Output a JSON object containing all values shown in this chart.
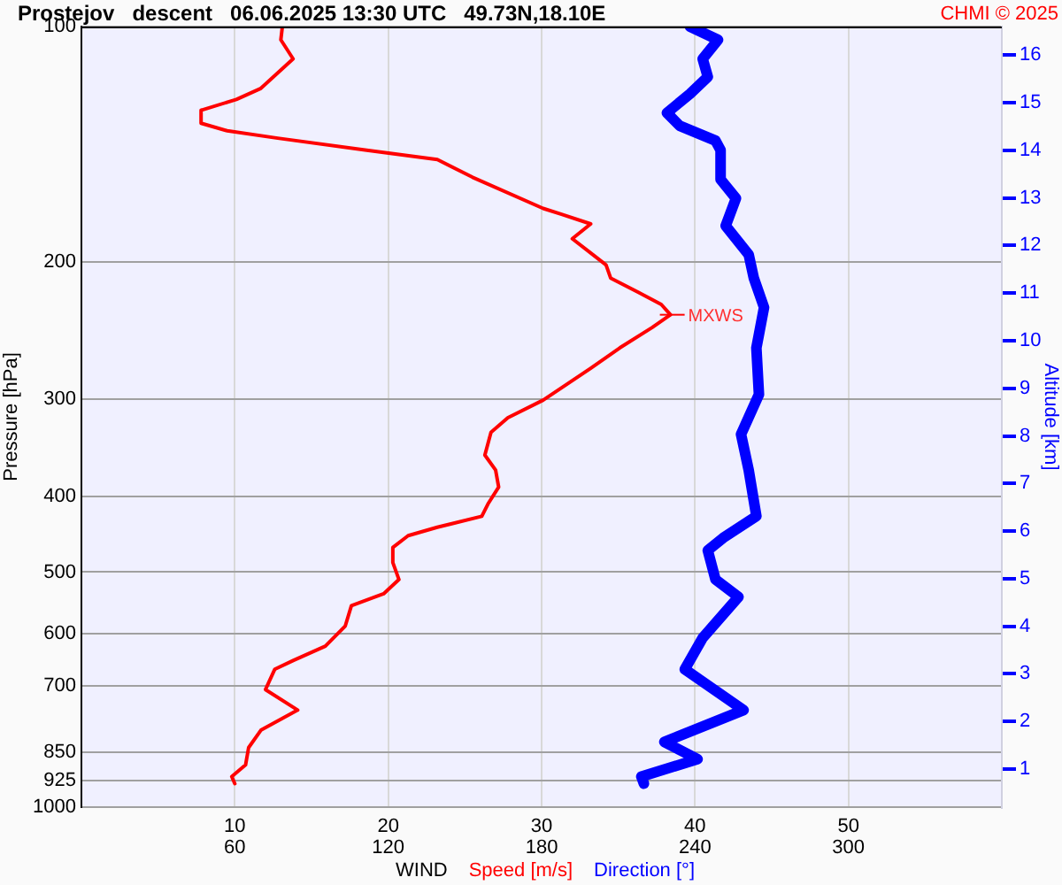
{
  "chart_data": {
    "type": "line",
    "title": "Prostejov   descent   06.06.2025 13:30 UTC   49.73N,18.10E",
    "xlabel": "WIND",
    "ylabel": "Pressure [hPa]",
    "y2label": "Altitude [km]",
    "annotations": [
      "CHMI © 2025",
      {
        "text": "MXWS",
        "x": 38.4,
        "y": 234
      }
    ],
    "log": "y",
    "grid": true,
    "legend": "bottom",
    "marker": "none",
    "line_style": "solid",
    "xlim": [
      0,
      60
    ],
    "xticks": [
      10,
      20,
      30,
      40,
      50
    ],
    "x2lim": [
      0,
      360
    ],
    "x2ticks": [
      60,
      120,
      180,
      240,
      300
    ],
    "ylim": [
      1000,
      100
    ],
    "yticks": [
      100,
      200,
      300,
      400,
      500,
      600,
      700,
      850,
      925,
      1000
    ],
    "y2lim": [
      0.2,
      16.6
    ],
    "y2ticks": [
      1,
      2,
      3,
      4,
      5,
      6,
      7,
      8,
      9,
      10,
      11,
      12,
      13,
      14,
      15,
      16
    ],
    "series": [
      {
        "name": "Speed [m/s]",
        "color": "#ff0000",
        "x": [
          13.1,
          13.0,
          13.8,
          11.7,
          10.1,
          7.8,
          7.8,
          9.5,
          12.8,
          18.6,
          23.2,
          25.5,
          30.1,
          31.3,
          33.2,
          32.0,
          33.2,
          34.2,
          34.5,
          36.3,
          37.8,
          38.4,
          37.2,
          35.1,
          33.2,
          30.1,
          27.8,
          26.7,
          26.3,
          27.0,
          27.2,
          26.5,
          26.1,
          23.2,
          21.3,
          20.3,
          20.3,
          20.7,
          19.7,
          17.6,
          17.2,
          15.9,
          13.8,
          12.6,
          12.0,
          14.1,
          11.7,
          10.9,
          10.7,
          9.8,
          10.0
        ],
        "values": [
          100,
          104,
          110,
          120,
          124,
          128,
          133,
          136,
          139,
          144,
          148,
          156,
          171,
          174,
          179,
          187,
          195,
          202,
          210,
          219,
          227,
          234,
          243,
          258,
          274,
          301,
          317,
          331,
          354,
          370,
          389,
          409,
          424,
          438,
          449,
          465,
          486,
          511,
          533,
          552,
          586,
          622,
          649,
          666,
          707,
          751,
          797,
          839,
          883,
          914,
          933
        ]
      },
      {
        "name": "Direction [°]",
        "color": "#0000ff",
        "axis": "x2",
        "x": [
          238,
          249,
          243,
          245,
          238,
          229,
          234,
          248,
          250,
          250,
          256,
          252,
          261,
          263,
          267,
          264,
          265,
          258,
          261,
          264,
          251,
          245,
          248,
          257,
          243,
          236,
          259,
          228,
          241,
          219,
          220
        ],
        "values": [
          100,
          104,
          110,
          116,
          122,
          129,
          134,
          140,
          144,
          157,
          166,
          180,
          196,
          210,
          229,
          258,
          296,
          333,
          370,
          424,
          452,
          469,
          511,
          538,
          607,
          666,
          751,
          825,
          868,
          914,
          933
        ]
      }
    ]
  }
}
